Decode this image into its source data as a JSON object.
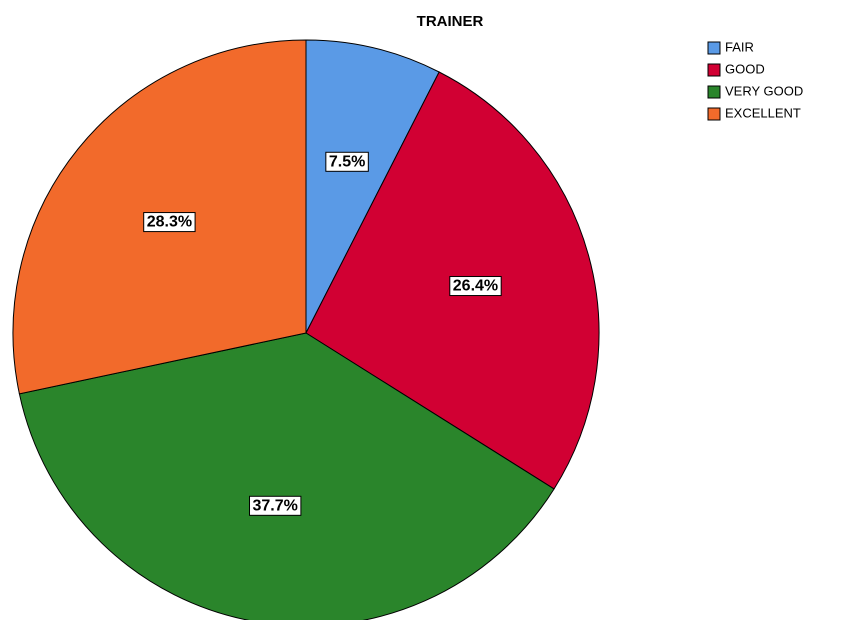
{
  "chart_data": {
    "type": "pie",
    "title": "TRAINER",
    "categories": [
      "FAIR",
      "GOOD",
      "VERY GOOD",
      "EXCELLENT"
    ],
    "values": [
      7.5,
      26.4,
      37.7,
      28.3
    ],
    "value_labels": [
      "7.5%",
      "26.4%",
      "37.7%",
      "28.3%"
    ],
    "colors": [
      "#5a9ae6",
      "#d10033",
      "#2a852b",
      "#f26a2b"
    ]
  }
}
